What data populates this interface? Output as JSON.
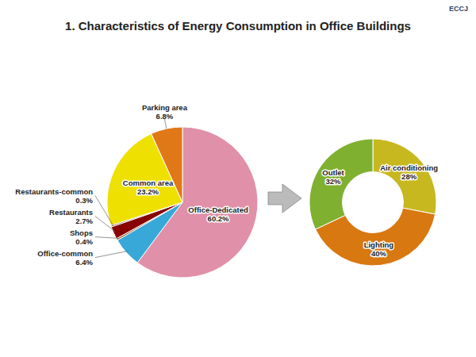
{
  "chart_data": [
    {
      "type": "pie",
      "title": "1. Characteristics of Energy Consumption in Office Buildings",
      "annotations": [
        "ECCJ"
      ],
      "categories": [
        "Office-Dedicated",
        "Office-common",
        "Shops",
        "Restaurants",
        "Restaurants-common",
        "Common area",
        "Parking area"
      ],
      "values": [
        60.2,
        6.4,
        0.4,
        2.7,
        0.3,
        23.2,
        6.8
      ],
      "value_labels": [
        "60.2%",
        "6.4%",
        "0.4%",
        "2.7%",
        "0.3%",
        "23.2%",
        "6.8%"
      ],
      "colors": [
        "#E090A8",
        "#38A8D8",
        "#A05828",
        "#880000",
        "#603010",
        "#EEE000",
        "#E07818"
      ],
      "data_labels": true
    },
    {
      "type": "donut",
      "categories": [
        "Air conditioning",
        "Lighting",
        "Outlet"
      ],
      "values": [
        28,
        40,
        32
      ],
      "value_labels": [
        "28%",
        "40%",
        "32%"
      ],
      "colors": [
        "#C8B820",
        "#D87810",
        "#80B030"
      ],
      "data_labels": true
    }
  ]
}
